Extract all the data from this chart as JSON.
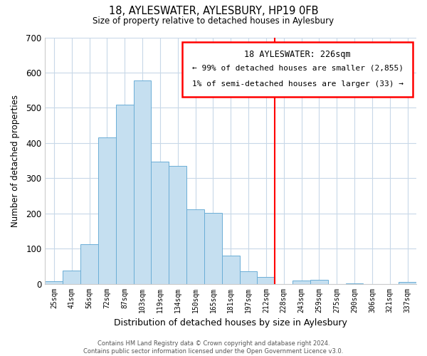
{
  "title": "18, AYLESWATER, AYLESBURY, HP19 0FB",
  "subtitle": "Size of property relative to detached houses in Aylesbury",
  "xlabel": "Distribution of detached houses by size in Aylesbury",
  "ylabel": "Number of detached properties",
  "bar_labels": [
    "25sqm",
    "41sqm",
    "56sqm",
    "72sqm",
    "87sqm",
    "103sqm",
    "119sqm",
    "134sqm",
    "150sqm",
    "165sqm",
    "181sqm",
    "197sqm",
    "212sqm",
    "228sqm",
    "243sqm",
    "259sqm",
    "275sqm",
    "290sqm",
    "306sqm",
    "321sqm",
    "337sqm"
  ],
  "bar_values": [
    8,
    38,
    113,
    415,
    508,
    578,
    348,
    335,
    212,
    202,
    80,
    36,
    20,
    0,
    10,
    12,
    0,
    2,
    0,
    0,
    5
  ],
  "bar_color": "#c5dff0",
  "bar_edge_color": "#6baed6",
  "vline_index": 13,
  "annotation_title": "18 AYLESWATER: 226sqm",
  "annotation_line1": "← 99% of detached houses are smaller (2,855)",
  "annotation_line2": "1% of semi-detached houses are larger (33) →",
  "ylim": [
    0,
    700
  ],
  "yticks": [
    0,
    100,
    200,
    300,
    400,
    500,
    600,
    700
  ],
  "footer1": "Contains HM Land Registry data © Crown copyright and database right 2024.",
  "footer2": "Contains public sector information licensed under the Open Government Licence v3.0.",
  "background_color": "#ffffff",
  "grid_color": "#c8d8e8"
}
